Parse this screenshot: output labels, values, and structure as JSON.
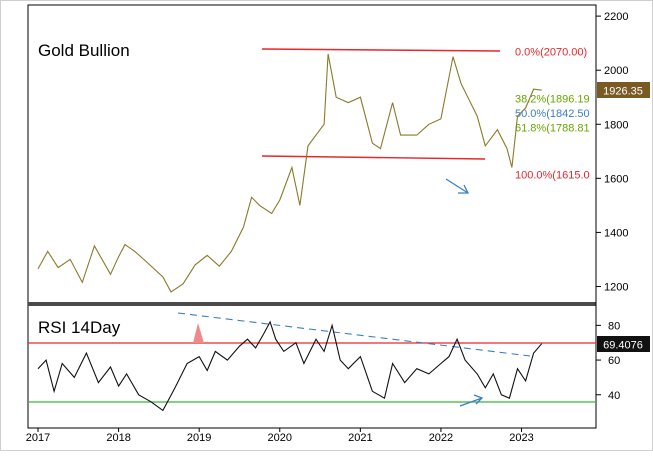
{
  "chart_data": [
    {
      "type": "line",
      "title": "Gold Bullion",
      "ylim": [
        1150,
        2230
      ],
      "y_ticks": [
        "1200",
        "1400",
        "1600",
        "1800",
        "2000",
        "2200"
      ],
      "x_ticks": [
        "2017",
        "2018",
        "2019",
        "2020",
        "2021",
        "2022",
        "2023"
      ],
      "last_value_label": "1926.35",
      "series": [
        {
          "values": [
            {
              "x": 2017.0,
              "y": 1265
            },
            {
              "x": 2017.12,
              "y": 1330
            },
            {
              "x": 2017.25,
              "y": 1270
            },
            {
              "x": 2017.4,
              "y": 1300
            },
            {
              "x": 2017.55,
              "y": 1215
            },
            {
              "x": 2017.7,
              "y": 1350
            },
            {
              "x": 2017.9,
              "y": 1245
            },
            {
              "x": 2018.0,
              "y": 1310
            },
            {
              "x": 2018.08,
              "y": 1355
            },
            {
              "x": 2018.2,
              "y": 1330
            },
            {
              "x": 2018.35,
              "y": 1290
            },
            {
              "x": 2018.55,
              "y": 1235
            },
            {
              "x": 2018.65,
              "y": 1180
            },
            {
              "x": 2018.8,
              "y": 1210
            },
            {
              "x": 2018.95,
              "y": 1280
            },
            {
              "x": 2019.1,
              "y": 1315
            },
            {
              "x": 2019.25,
              "y": 1275
            },
            {
              "x": 2019.4,
              "y": 1330
            },
            {
              "x": 2019.55,
              "y": 1420
            },
            {
              "x": 2019.65,
              "y": 1530
            },
            {
              "x": 2019.75,
              "y": 1500
            },
            {
              "x": 2019.9,
              "y": 1470
            },
            {
              "x": 2020.0,
              "y": 1520
            },
            {
              "x": 2020.15,
              "y": 1640
            },
            {
              "x": 2020.25,
              "y": 1500
            },
            {
              "x": 2020.35,
              "y": 1720
            },
            {
              "x": 2020.45,
              "y": 1760
            },
            {
              "x": 2020.55,
              "y": 1800
            },
            {
              "x": 2020.6,
              "y": 2060
            },
            {
              "x": 2020.7,
              "y": 1900
            },
            {
              "x": 2020.85,
              "y": 1880
            },
            {
              "x": 2021.0,
              "y": 1900
            },
            {
              "x": 2021.15,
              "y": 1730
            },
            {
              "x": 2021.25,
              "y": 1710
            },
            {
              "x": 2021.4,
              "y": 1880
            },
            {
              "x": 2021.5,
              "y": 1760
            },
            {
              "x": 2021.7,
              "y": 1760
            },
            {
              "x": 2021.85,
              "y": 1800
            },
            {
              "x": 2022.0,
              "y": 1820
            },
            {
              "x": 2022.15,
              "y": 2050
            },
            {
              "x": 2022.25,
              "y": 1950
            },
            {
              "x": 2022.45,
              "y": 1830
            },
            {
              "x": 2022.55,
              "y": 1720
            },
            {
              "x": 2022.7,
              "y": 1780
            },
            {
              "x": 2022.82,
              "y": 1710
            },
            {
              "x": 2022.88,
              "y": 1640
            },
            {
              "x": 2022.95,
              "y": 1830
            },
            {
              "x": 2023.05,
              "y": 1860
            },
            {
              "x": 2023.15,
              "y": 1930
            },
            {
              "x": 2023.25,
              "y": 1926
            }
          ]
        }
      ],
      "fib_levels": [
        {
          "label": "0.0%(2070.00)",
          "value": 2070.0,
          "color": "#e8262b"
        },
        {
          "label": "38.2%(1896.19",
          "value": 1896.19,
          "color": "#66a800"
        },
        {
          "label": "50.0%(1842.50",
          "value": 1842.5,
          "color": "#3a7fc4"
        },
        {
          "label": "61.8%(1788.81",
          "value": 1788.81,
          "color": "#66a800"
        },
        {
          "label": "100.0%(1615.0",
          "value": 1615.0,
          "color": "#e8262b"
        }
      ]
    },
    {
      "type": "line",
      "title": "RSI 14Day",
      "ylim": [
        22,
        90
      ],
      "y_ticks": [
        "40",
        "60",
        "80"
      ],
      "last_value_label": "69.4076",
      "reference_lines": [
        {
          "value": 70,
          "color": "#e8262b"
        },
        {
          "value": 30,
          "color": "#33bb33"
        }
      ],
      "series": [
        {
          "values": [
            {
              "x": 2017.0,
              "y": 55
            },
            {
              "x": 2017.1,
              "y": 60
            },
            {
              "x": 2017.2,
              "y": 42
            },
            {
              "x": 2017.3,
              "y": 58
            },
            {
              "x": 2017.45,
              "y": 50
            },
            {
              "x": 2017.6,
              "y": 64
            },
            {
              "x": 2017.75,
              "y": 47
            },
            {
              "x": 2017.9,
              "y": 56
            },
            {
              "x": 2018.0,
              "y": 45
            },
            {
              "x": 2018.1,
              "y": 52
            },
            {
              "x": 2018.25,
              "y": 40
            },
            {
              "x": 2018.4,
              "y": 36
            },
            {
              "x": 2018.55,
              "y": 31
            },
            {
              "x": 2018.7,
              "y": 44
            },
            {
              "x": 2018.85,
              "y": 58
            },
            {
              "x": 2019.0,
              "y": 62
            },
            {
              "x": 2019.1,
              "y": 54
            },
            {
              "x": 2019.2,
              "y": 65
            },
            {
              "x": 2019.35,
              "y": 60
            },
            {
              "x": 2019.5,
              "y": 68
            },
            {
              "x": 2019.6,
              "y": 72
            },
            {
              "x": 2019.7,
              "y": 67
            },
            {
              "x": 2019.8,
              "y": 75
            },
            {
              "x": 2019.88,
              "y": 82
            },
            {
              "x": 2019.95,
              "y": 72
            },
            {
              "x": 2020.05,
              "y": 65
            },
            {
              "x": 2020.2,
              "y": 70
            },
            {
              "x": 2020.3,
              "y": 58
            },
            {
              "x": 2020.45,
              "y": 72
            },
            {
              "x": 2020.55,
              "y": 65
            },
            {
              "x": 2020.65,
              "y": 80
            },
            {
              "x": 2020.75,
              "y": 60
            },
            {
              "x": 2020.85,
              "y": 55
            },
            {
              "x": 2021.0,
              "y": 62
            },
            {
              "x": 2021.15,
              "y": 42
            },
            {
              "x": 2021.3,
              "y": 38
            },
            {
              "x": 2021.4,
              "y": 58
            },
            {
              "x": 2021.55,
              "y": 47
            },
            {
              "x": 2021.7,
              "y": 55
            },
            {
              "x": 2021.85,
              "y": 52
            },
            {
              "x": 2022.0,
              "y": 58
            },
            {
              "x": 2022.1,
              "y": 62
            },
            {
              "x": 2022.2,
              "y": 72
            },
            {
              "x": 2022.3,
              "y": 60
            },
            {
              "x": 2022.45,
              "y": 52
            },
            {
              "x": 2022.55,
              "y": 44
            },
            {
              "x": 2022.65,
              "y": 52
            },
            {
              "x": 2022.75,
              "y": 40
            },
            {
              "x": 2022.85,
              "y": 38
            },
            {
              "x": 2022.95,
              "y": 55
            },
            {
              "x": 2023.05,
              "y": 48
            },
            {
              "x": 2023.15,
              "y": 64
            },
            {
              "x": 2023.25,
              "y": 69.4
            }
          ]
        }
      ]
    }
  ]
}
